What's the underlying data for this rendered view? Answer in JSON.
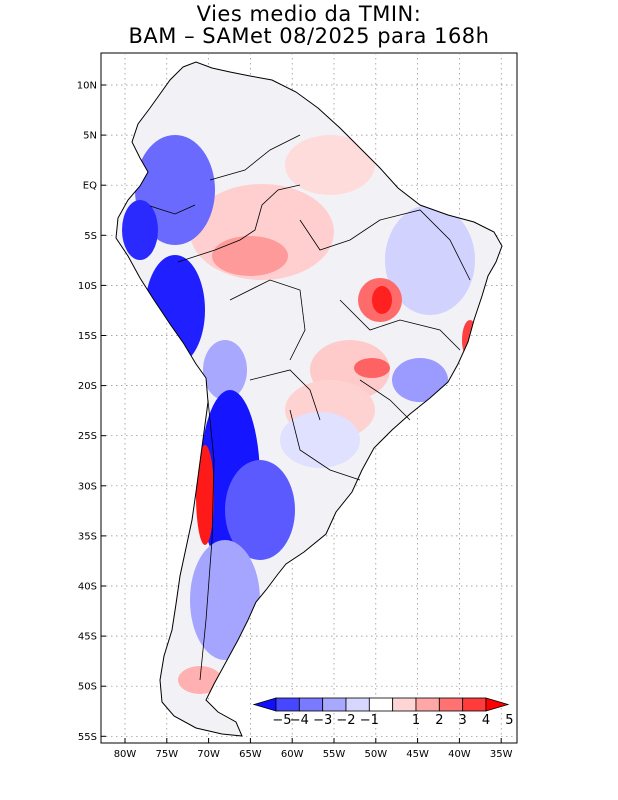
{
  "title": {
    "line1": "Vies medio da TMIN:",
    "line2": "BAM – SAMet 08/2025  para 168h"
  },
  "map": {
    "region": "South America",
    "lat_labels": [
      "10N",
      "5N",
      "EQ",
      "5S",
      "10S",
      "15S",
      "20S",
      "25S",
      "30S",
      "35S",
      "40S",
      "45S",
      "50S",
      "55S"
    ],
    "lon_labels": [
      "80W",
      "75W",
      "70W",
      "65W",
      "60W",
      "55W",
      "50W",
      "45W",
      "40W",
      "35W"
    ]
  },
  "colorbar": {
    "labels": [
      "−5",
      "−4",
      "−3",
      "−2",
      "−1",
      "1",
      "2",
      "3",
      "4",
      "5"
    ],
    "colors": [
      "#1010ff",
      "#4747ff",
      "#7a7aff",
      "#a8a8ff",
      "#d6d6ff",
      "#ffffff",
      "#ffd4d4",
      "#ffa6a6",
      "#ff7272",
      "#ff3b3b",
      "#ff0000"
    ]
  },
  "colors": {
    "strong_negative": "#1a1aff",
    "mid_negative": "#8c8cff",
    "light_negative": "#d0d0ff",
    "light_positive": "#ffd0d0",
    "mid_positive": "#ff8080",
    "strong_positive": "#ff1a1a"
  }
}
